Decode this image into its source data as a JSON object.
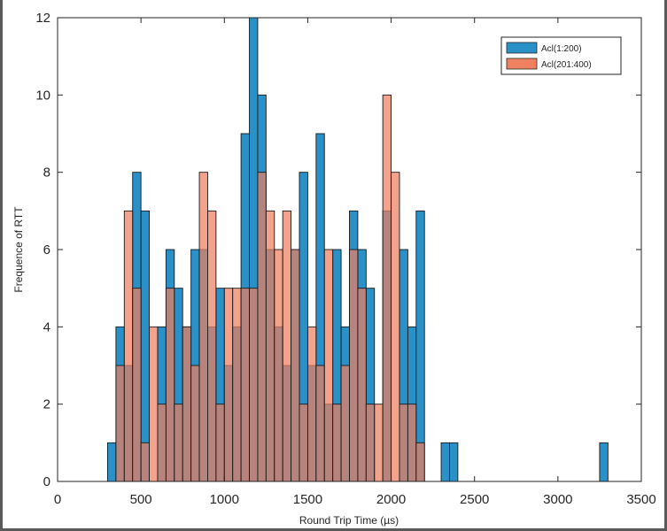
{
  "chart_data": {
    "type": "bar",
    "title": "",
    "xlabel": "Round Trip Time (µs)",
    "ylabel": "Frequence of RTT",
    "xlim": [
      0,
      3500
    ],
    "ylim": [
      0,
      12
    ],
    "xticks": [
      0,
      500,
      1000,
      1500,
      2000,
      2500,
      3000,
      3500
    ],
    "yticks": [
      0,
      2,
      4,
      6,
      8,
      10,
      12
    ],
    "x_tick_labels": [
      "0",
      "500",
      "1000",
      "1500",
      "2000",
      "2500",
      "3000",
      "3500"
    ],
    "y_tick_labels": [
      "0",
      "2",
      "4",
      "6",
      "8",
      "10",
      "12"
    ],
    "bin_start": 300,
    "bin_width": 50,
    "grid": false,
    "legend_position": "top-right",
    "series": [
      {
        "name": "Acl(1:200)",
        "color": "#2a90c8",
        "values": [
          1,
          4,
          3,
          8,
          7,
          0,
          4,
          6,
          5,
          4,
          6,
          6,
          4,
          5,
          3,
          4,
          9,
          12,
          10,
          6,
          4,
          3,
          6,
          8,
          3,
          9,
          2,
          6,
          4,
          7,
          6,
          5,
          0,
          7,
          0,
          6,
          4,
          7,
          0,
          0,
          1,
          1,
          0,
          0,
          0,
          0,
          0,
          0,
          0,
          0,
          0,
          0,
          0,
          0,
          0,
          0,
          0,
          0,
          0,
          1
        ]
      },
      {
        "name": "Acl(201:400)",
        "color": "#ef8060",
        "values": [
          0,
          3,
          7,
          5,
          1,
          4,
          2,
          5,
          2,
          4,
          3,
          8,
          7,
          2,
          5,
          5,
          5,
          5,
          8,
          7,
          6,
          7,
          6,
          2,
          4,
          3,
          6,
          2,
          3,
          6,
          5,
          2,
          2,
          10,
          8,
          2,
          2,
          1,
          0,
          0,
          0,
          0,
          0,
          0,
          0,
          0,
          0,
          0,
          0,
          0,
          0,
          0,
          0,
          0,
          0,
          0,
          0,
          0,
          0,
          0
        ]
      }
    ]
  }
}
